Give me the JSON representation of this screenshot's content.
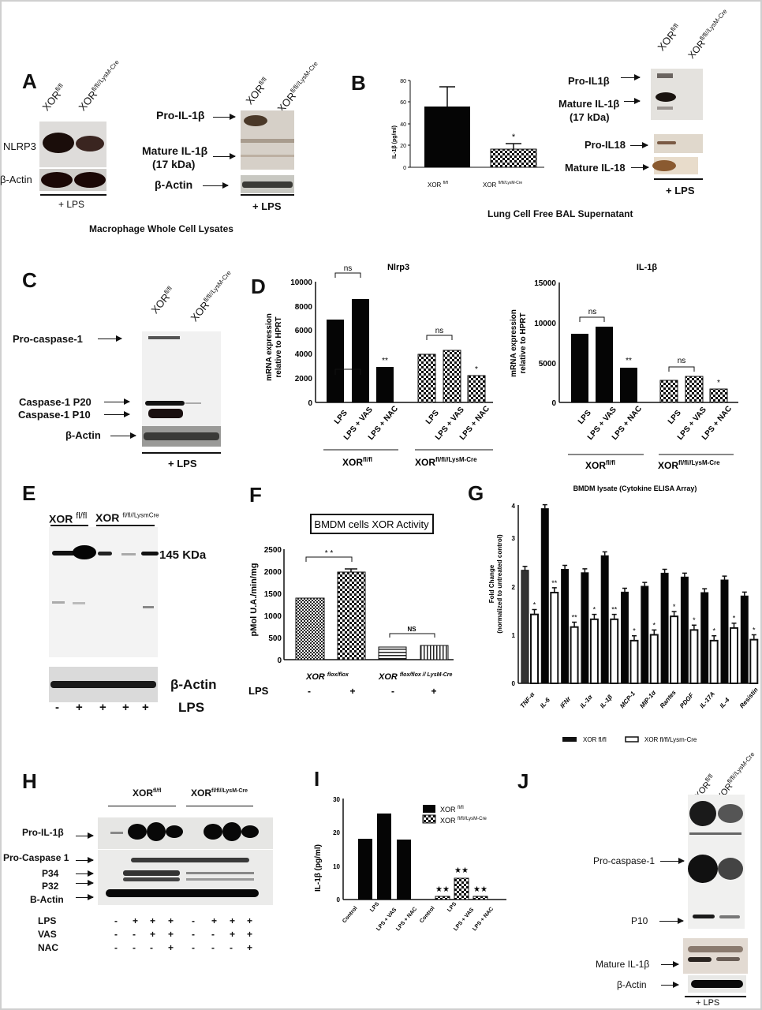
{
  "panels": {
    "A": {
      "label": "A",
      "left_blot": {
        "lanes": [
          "XOR",
          "XOR"
        ],
        "lane_sups": [
          "fl/fl",
          "fl/fl//LysM-Cre"
        ],
        "rows": [
          "NLRP3",
          "β-Actin"
        ],
        "treatment": "+ LPS"
      },
      "right_blot": {
        "lanes": [
          "XOR",
          "XOR"
        ],
        "lane_sups": [
          "fl/fl",
          "fl/fl//LysM-Cre"
        ],
        "rows": [
          "Pro-IL-1β",
          "Mature IL-1β",
          "(17 kDa)",
          "β-Actin"
        ],
        "treatment": "+ LPS"
      },
      "caption": "Macrophage Whole Cell Lysates"
    },
    "B": {
      "label": "B",
      "caption": "Lung Cell Free BAL Supernatant",
      "blot": {
        "lanes": [
          "XOR",
          "XOR"
        ],
        "lane_sups": [
          "fl/fl",
          "fl/fl//LysM-Cre"
        ],
        "rows": [
          "Pro-IL1β",
          "Mature IL-1β",
          "(17 kDa)",
          "Pro-IL18",
          "Mature IL-18"
        ],
        "treatment": "+ LPS"
      }
    },
    "C": {
      "label": "C",
      "lanes": [
        "XOR",
        "XOR"
      ],
      "lane_sups": [
        "fl/fl",
        "fl/fl//LysM-Cre"
      ],
      "rows": [
        "Pro-caspase-1",
        "Caspase-1  P20",
        "Caspase-1  P10",
        "β-Actin"
      ],
      "treatment": "+ LPS"
    },
    "D": {
      "label": "D",
      "group_labels": [
        "XOR",
        "XOR"
      ],
      "group_sups": [
        "fl/fl",
        "fl/fl//LysM-Cre"
      ]
    },
    "E": {
      "label": "E",
      "groups": [
        "XOR",
        "XOR"
      ],
      "group_sups": [
        "fl/fl",
        "fl/fl//LysmCre"
      ],
      "band_label": "145 KDa",
      "actin": "β-Actin",
      "lps_row_label": "LPS",
      "lps": [
        "-",
        "+",
        "+",
        "+",
        "+"
      ]
    },
    "F": {
      "label": "F",
      "lps_row_label": "LPS",
      "lps": [
        "-",
        "+",
        "-",
        "+"
      ]
    },
    "G": {
      "label": "G"
    },
    "H": {
      "label": "H",
      "groups": [
        "XOR",
        "XOR"
      ],
      "group_sups": [
        "fl/fl",
        "fl/fl//LysM-Cre"
      ],
      "rows": [
        "Pro-IL-1β",
        "Pro-Caspase 1",
        "P34",
        "P32",
        "B-Actin"
      ],
      "treatments": [
        {
          "name": "LPS",
          "values": [
            "-",
            "+",
            "+",
            "+",
            "-",
            "+",
            "+",
            "+"
          ]
        },
        {
          "name": "VAS",
          "values": [
            "-",
            "-",
            "+",
            "+",
            "-",
            "-",
            "+",
            "+"
          ]
        },
        {
          "name": "NAC",
          "values": [
            "-",
            "-",
            "-",
            "+",
            "-",
            "-",
            "-",
            "+"
          ]
        }
      ]
    },
    "I": {
      "label": "I"
    },
    "J": {
      "label": "J",
      "lanes": [
        "XOR",
        "XOR"
      ],
      "lane_sups": [
        "fl/fl",
        "fl/fl//LysM-Cre"
      ],
      "rows": [
        "Pro-caspase-1",
        "P10",
        "Mature IL-1β",
        "β-Actin"
      ],
      "treatment": "+ LPS"
    }
  },
  "chart_data": [
    {
      "id": "B",
      "type": "bar",
      "title": "",
      "categories": [
        "XOR fl/fl",
        "XOR fl/fl//LysM-Cre"
      ],
      "values": [
        56,
        17
      ],
      "errors": [
        18,
        5
      ],
      "significance": [
        "",
        "*"
      ],
      "ylabel": "IL-1β (pg/ml)",
      "ylim": [
        0,
        80
      ],
      "yticks": [
        0,
        20,
        40,
        60,
        80
      ],
      "fills": [
        "solid",
        "checker"
      ]
    },
    {
      "id": "D-Nlrp3",
      "type": "bar",
      "title": "Nlrp3",
      "categories": [
        "LPS",
        "LPS + VAS",
        "LPS + NAC",
        "LPS",
        "LPS + VAS",
        "LPS + NAC"
      ],
      "groups": [
        "XOR fl/fl",
        "XOR fl/fl//LysM-Cre"
      ],
      "values": [
        6850,
        8500,
        2900,
        3950,
        4300,
        2200
      ],
      "errors": [
        120,
        120,
        120,
        120,
        120,
        120
      ],
      "significance": [
        "",
        "",
        "**",
        "",
        "",
        "*"
      ],
      "brackets": [
        {
          "from": 0,
          "to": 1,
          "label": "ns"
        },
        {
          "from": 3,
          "to": 4,
          "label": "ns"
        }
      ],
      "ylabel": "mRNA expression relative to HPRT",
      "ylim": [
        0,
        10000
      ],
      "yticks": [
        0,
        2000,
        4000,
        6000,
        8000,
        10000
      ]
    },
    {
      "id": "D-IL1b",
      "type": "bar",
      "title": "IL-1β",
      "categories": [
        "LPS",
        "LPS + VAS",
        "LPS + NAC",
        "LPS",
        "LPS + VAS",
        "LPS + NAC"
      ],
      "groups": [
        "XOR fl/fl",
        "XOR fl/fl//LysM-Cre"
      ],
      "values": [
        8600,
        9500,
        4350,
        2700,
        3250,
        1700
      ],
      "errors": [
        120,
        120,
        150,
        100,
        100,
        120
      ],
      "significance": [
        "",
        "",
        "**",
        "",
        "",
        "*"
      ],
      "brackets": [
        {
          "from": 0,
          "to": 1,
          "label": "ns"
        },
        {
          "from": 3,
          "to": 4,
          "label": "ns"
        }
      ],
      "ylabel": "mRNA expression relative to HPRT",
      "ylim": [
        0,
        15000
      ],
      "yticks": [
        0,
        5000,
        10000,
        15000
      ]
    },
    {
      "id": "F",
      "type": "bar",
      "title": "BMDM cells XOR Activity",
      "categories": [
        "XOR flox/flox -",
        "XOR flox/flox +",
        "XOR flox/flox // LysM-Cre -",
        "XOR flox/flox // LysM-Cre +"
      ],
      "group_labels": [
        "XOR flox/flox",
        "XOR flox/flox // LysM-Cre"
      ],
      "values": [
        1390,
        1980,
        290,
        310
      ],
      "errors": [
        20,
        60,
        10,
        10
      ],
      "brackets": [
        {
          "from": 0,
          "to": 1,
          "label": "**"
        },
        {
          "from": 2,
          "to": 3,
          "label": "NS"
        }
      ],
      "ylabel": "pMol U.A./min/mg",
      "ylim": [
        0,
        2500
      ],
      "yticks": [
        0,
        500,
        1000,
        1500,
        2000,
        2500
      ],
      "fills": [
        "dense-checker",
        "checker",
        "hlines",
        "vlines"
      ]
    },
    {
      "id": "G",
      "type": "bar",
      "title": "BMDM lysate (Cytokine ELISA Array)",
      "categories": [
        "TNF-α",
        "IL-6",
        "IFNr",
        "IL-1α",
        "IL-1β",
        "MCP-1",
        "MIP-1α",
        "Rantes",
        "PDGF",
        "IL-17A",
        "IL-4",
        "Resistin"
      ],
      "series": [
        {
          "name": "XOR fl/fl",
          "values": [
            2.33,
            3.6,
            2.35,
            2.28,
            2.63,
            1.88,
            2.0,
            2.27,
            2.19,
            1.87,
            2.13,
            1.8
          ],
          "errors": [
            0.08,
            0.08,
            0.08,
            0.08,
            0.08,
            0.08,
            0.08,
            0.08,
            0.08,
            0.08,
            0.08,
            0.08
          ]
        },
        {
          "name": "XOR fl/fl/Lysm-Cre",
          "values": [
            1.42,
            1.87,
            1.16,
            1.32,
            1.32,
            0.88,
            1.0,
            1.38,
            1.1,
            0.88,
            1.14,
            0.9
          ],
          "errors": [
            0.1,
            0.1,
            0.1,
            0.1,
            0.1,
            0.1,
            0.1,
            0.1,
            0.1,
            0.1,
            0.1,
            0.1
          ]
        }
      ],
      "significance": [
        "*",
        "**",
        "**",
        "*",
        "**",
        "*",
        "*",
        "*",
        "*",
        "*",
        "*",
        "*"
      ],
      "ylabel": "Fold Change (normalized to untreated control)",
      "ylim": [
        0,
        4
      ],
      "yticks": [
        0,
        1,
        2,
        3,
        4
      ],
      "legend": [
        "XOR fl/fl",
        "XOR fl/fl/Lysm-Cre"
      ],
      "legend_position": "bottom"
    },
    {
      "id": "I",
      "type": "bar",
      "title": "",
      "categories": [
        "Control",
        "LPS",
        "LPS + VAS",
        "LPS + NAC",
        "Control",
        "LPS",
        "LPS + VAS",
        "LPS + NAC"
      ],
      "series": [
        {
          "name": "XOR fl/fl",
          "values": [
            0,
            18,
            25.3,
            17.9,
            null,
            null,
            null,
            null
          ]
        },
        {
          "name": "XOR fl/fl//LysM-Cre",
          "values": [
            null,
            null,
            null,
            null,
            0,
            0.9,
            6.3,
            0.9
          ]
        }
      ],
      "errors": [
        0,
        0.4,
        0.6,
        0.4,
        0,
        0.1,
        0.3,
        0.1
      ],
      "significance": [
        "",
        "",
        "",
        "",
        "",
        "★★",
        "★★",
        "★★"
      ],
      "ylabel": "IL-1β (pg/ml)",
      "ylim": [
        0,
        30
      ],
      "yticks": [
        0,
        10,
        20,
        30
      ],
      "legend": [
        "XOR fl/fl",
        "XOR fl/fl//LysM-Cre"
      ],
      "legend_position": "top-right"
    }
  ]
}
